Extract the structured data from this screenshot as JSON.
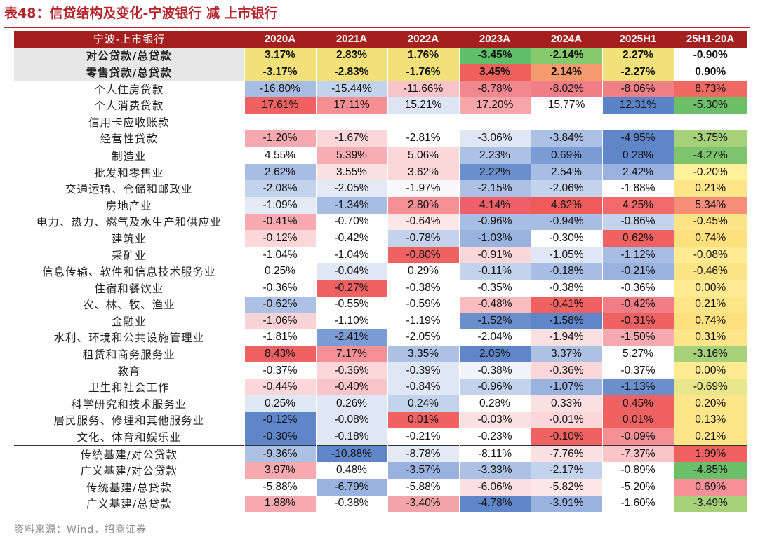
{
  "title": "表48：信贷结构及变化-宁波银行 减 上市银行",
  "header": {
    "corner": "宁波-上市银行",
    "columns": [
      "2020A",
      "2021A",
      "2022A",
      "2023A",
      "2024A",
      "2025H1",
      "25H1-20A"
    ]
  },
  "rows": [
    {
      "label": "对公贷款/总贷款",
      "bold": true,
      "values": [
        "3.17%",
        "2.83%",
        "1.76%",
        "-3.45%",
        "-2.14%",
        "2.27%",
        "-0.90%"
      ],
      "colors": [
        "#f2e07a",
        "#f2e07a",
        "#f2e07a",
        "#5fbf6a",
        "#87c96d",
        "#f2e07a",
        "#ffffff"
      ]
    },
    {
      "label": "零售贷款/总贷款",
      "bold": true,
      "values": [
        "-3.17%",
        "-2.83%",
        "-1.76%",
        "3.45%",
        "2.14%",
        "-2.27%",
        "0.90%"
      ],
      "colors": [
        "#f2e07a",
        "#f2e07a",
        "#f2e07a",
        "#f0605a",
        "#f49a6e",
        "#f2e07a",
        "#ffffff"
      ]
    },
    {
      "label": "个人住房贷款",
      "values": [
        "-16.80%",
        "-15.44%",
        "-11.66%",
        "-8.78%",
        "-8.02%",
        "-8.06%",
        "8.73%"
      ],
      "colors": [
        "#a7bde3",
        "#c4d3ec",
        "#f7c5c9",
        "#f2888f",
        "#ef7e86",
        "#f07f86",
        "#f06963"
      ]
    },
    {
      "label": "个人消费贷款",
      "values": [
        "17.61%",
        "17.11%",
        "15.21%",
        "17.20%",
        "15.77%",
        "12.31%",
        "-5.30%"
      ],
      "colors": [
        "#f06262",
        "#f58f93",
        "#dde5f4",
        "#f6a5a9",
        "#ffffff",
        "#5b84c8",
        "#6cbf69"
      ]
    },
    {
      "label": "信用卡应收账款",
      "values": [
        "",
        "",
        "",
        "",
        "",
        "",
        ""
      ],
      "colors": [
        "#ffffff",
        "#ffffff",
        "#ffffff",
        "#ffffff",
        "#ffffff",
        "#ffffff",
        "#ffffff"
      ]
    },
    {
      "label": "经营性贷款",
      "values": [
        "-1.20%",
        "-1.67%",
        "-2.81%",
        "-3.06%",
        "-3.84%",
        "-4.95%",
        "-3.75%"
      ],
      "colors": [
        "#f6aab0",
        "#fbd7da",
        "#ffffff",
        "#dfe6f4",
        "#adc1e4",
        "#5f86c9",
        "#a6d17a"
      ]
    },
    {
      "label": "制造业",
      "sep": true,
      "values": [
        "4.55%",
        "5.39%",
        "5.06%",
        "2.23%",
        "0.69%",
        "0.28%",
        "-4.27%"
      ],
      "colors": [
        "#ffffff",
        "#f6aeb3",
        "#fbd7da",
        "#adc1e4",
        "#7c9cd5",
        "#5f86c9",
        "#7ec46c"
      ]
    },
    {
      "label": "批发和零售业",
      "values": [
        "2.62%",
        "3.55%",
        "3.62%",
        "2.22%",
        "2.54%",
        "2.42%",
        "-0.20%"
      ],
      "colors": [
        "#a7bde3",
        "#fbe0e2",
        "#fbd7da",
        "#6b8fcc",
        "#a7bde3",
        "#99b2df",
        "#fff09a"
      ]
    },
    {
      "label": "交通运输、仓储和邮政业",
      "values": [
        "-2.08%",
        "-2.05%",
        "-1.97%",
        "-2.15%",
        "-2.06%",
        "-1.88%",
        "0.21%"
      ],
      "colors": [
        "#c4d3ec",
        "#e3e9f5",
        "#f9f9fb",
        "#adc1e4",
        "#c4d3ec",
        "#ffffff",
        "#ffe58a"
      ]
    },
    {
      "label": "房地产业",
      "values": [
        "-1.09%",
        "-1.34%",
        "2.80%",
        "4.14%",
        "4.62%",
        "4.25%",
        "5.34%"
      ],
      "colors": [
        "#e3e9f5",
        "#a7bde3",
        "#f49096",
        "#f0606a",
        "#ef5a5a",
        "#f26a6c",
        "#f58d78"
      ]
    },
    {
      "label": "电力、热力、燃气及水生产和供应业",
      "values": [
        "-0.41%",
        "-0.70%",
        "-0.64%",
        "-0.96%",
        "-0.94%",
        "-0.86%",
        "-0.45%"
      ],
      "colors": [
        "#f6aab0",
        "#ffffff",
        "#fde6e8",
        "#a7bde3",
        "#a7bde3",
        "#c4d3ec",
        "#fbe486"
      ]
    },
    {
      "label": "建筑业",
      "values": [
        "-0.12%",
        "-0.42%",
        "-0.78%",
        "-1.03%",
        "-0.30%",
        "0.62%",
        "0.74%"
      ],
      "colors": [
        "#fbd7da",
        "#ffffff",
        "#c4d3ec",
        "#99b2df",
        "#ffffff",
        "#f06262",
        "#ffe07e"
      ]
    },
    {
      "label": "采矿业",
      "values": [
        "-1.04%",
        "-1.04%",
        "-0.80%",
        "-0.91%",
        "-1.05%",
        "-1.12%",
        "-0.08%"
      ],
      "colors": [
        "#ffffff",
        "#ffffff",
        "#f06262",
        "#fbd7da",
        "#dfe6f4",
        "#a7bde3",
        "#ffeb92"
      ]
    },
    {
      "label": "信息传输、软件和信息技术服务业",
      "values": [
        "0.25%",
        "-0.04%",
        "0.29%",
        "-0.11%",
        "-0.18%",
        "-0.21%",
        "-0.46%"
      ],
      "colors": [
        "#ffffff",
        "#dfe6f4",
        "#ffffff",
        "#c4d3ec",
        "#a7bde3",
        "#99b2df",
        "#fbe486"
      ]
    },
    {
      "label": "住宿和餐饮业",
      "values": [
        "-0.36%",
        "-0.27%",
        "-0.38%",
        "-0.35%",
        "-0.38%",
        "-0.36%",
        "0.00%"
      ],
      "colors": [
        "#ffffff",
        "#f06262",
        "#ffffff",
        "#ffffff",
        "#ffffff",
        "#ffffff",
        "#ffeb92"
      ]
    },
    {
      "label": "农、林、牧、渔业",
      "values": [
        "-0.62%",
        "-0.55%",
        "-0.59%",
        "-0.48%",
        "-0.41%",
        "-0.42%",
        "0.21%"
      ],
      "colors": [
        "#adc1e4",
        "#ffffff",
        "#ffffff",
        "#f9bcc1",
        "#f06262",
        "#f27d84",
        "#ffe58a"
      ]
    },
    {
      "label": "金融业",
      "values": [
        "-1.06%",
        "-1.10%",
        "-1.19%",
        "-1.52%",
        "-1.58%",
        "-0.31%",
        "0.74%"
      ],
      "colors": [
        "#f9d3d6",
        "#ffffff",
        "#ffffff",
        "#6b8fcc",
        "#5f86c9",
        "#f06262",
        "#ffe07e"
      ]
    },
    {
      "label": "水利、环境和公共设施管理业",
      "values": [
        "-1.81%",
        "-2.41%",
        "-2.05%",
        "-2.04%",
        "-1.94%",
        "-1.50%",
        "0.31%"
      ],
      "colors": [
        "#ffffff",
        "#7c9cd5",
        "#ffffff",
        "#ffffff",
        "#fbe0e2",
        "#f6aab0",
        "#ffe58a"
      ]
    },
    {
      "label": "租赁和商务服务业",
      "values": [
        "8.43%",
        "7.17%",
        "3.35%",
        "2.05%",
        "3.37%",
        "5.27%",
        "-3.16%"
      ],
      "colors": [
        "#f06262",
        "#f49096",
        "#adc1e4",
        "#5f86c9",
        "#adc1e4",
        "#ffffff",
        "#a6d17a"
      ]
    },
    {
      "label": "教育",
      "values": [
        "-0.37%",
        "-0.36%",
        "-0.39%",
        "-0.38%",
        "-0.36%",
        "-0.37%",
        "0.00%"
      ],
      "colors": [
        "#ffffff",
        "#fbd7da",
        "#dfe6f4",
        "#f1f4fa",
        "#fbd7da",
        "#ffffff",
        "#ffeb92"
      ]
    },
    {
      "label": "卫生和社会工作",
      "values": [
        "-0.44%",
        "-0.40%",
        "-0.84%",
        "-0.96%",
        "-1.07%",
        "-1.13%",
        "-0.69%"
      ],
      "colors": [
        "#fbd7da",
        "#f9c5c9",
        "#dfe6f4",
        "#c4d3ec",
        "#99b2df",
        "#6b8fcc",
        "#e8e68a"
      ]
    },
    {
      "label": "科学研究和技术服务业",
      "values": [
        "0.25%",
        "0.26%",
        "0.24%",
        "0.28%",
        "0.33%",
        "0.45%",
        "0.20%"
      ],
      "colors": [
        "#dfe6f4",
        "#dfe6f4",
        "#c4d3ec",
        "#ffffff",
        "#fbe0e2",
        "#f06262",
        "#ffe58a"
      ]
    },
    {
      "label": "居民服务、修理和其他服务业",
      "values": [
        "-0.12%",
        "-0.08%",
        "0.01%",
        "-0.03%",
        "-0.01%",
        "0.01%",
        "0.13%"
      ],
      "colors": [
        "#5f86c9",
        "#dfe6f4",
        "#f06262",
        "#fbe0e2",
        "#fbd7da",
        "#f06262",
        "#ffe58a"
      ]
    },
    {
      "label": "文化、体育和娱乐业",
      "values": [
        "-0.30%",
        "-0.18%",
        "-0.21%",
        "-0.23%",
        "-0.10%",
        "-0.09%",
        "0.21%"
      ],
      "colors": [
        "#5f86c9",
        "#dfe6f4",
        "#ffffff",
        "#ffffff",
        "#f06262",
        "#f49096",
        "#ffe58a"
      ]
    },
    {
      "label": "传统基建/对公贷款",
      "sep": true,
      "values": [
        "-9.36%",
        "-10.88%",
        "-8.78%",
        "-8.11%",
        "-7.76%",
        "-7.37%",
        "1.99%"
      ],
      "colors": [
        "#adc1e4",
        "#5f86c9",
        "#e3e9f5",
        "#ffffff",
        "#fbe0e2",
        "#f9c5c9",
        "#f06262"
      ]
    },
    {
      "label": "广义基建/对公贷款",
      "values": [
        "3.97%",
        "0.48%",
        "-3.57%",
        "-3.33%",
        "-2.17%",
        "-0.89%",
        "-4.85%"
      ],
      "colors": [
        "#f6aab0",
        "#ffffff",
        "#99b2df",
        "#adc1e4",
        "#c4d3ec",
        "#ffffff",
        "#6cbf69"
      ]
    },
    {
      "label": "传统基建/总贷款",
      "values": [
        "-5.88%",
        "-6.79%",
        "-5.88%",
        "-6.06%",
        "-5.82%",
        "-5.20%",
        "0.69%"
      ],
      "colors": [
        "#ffffff",
        "#99b2df",
        "#ffffff",
        "#fbe0e2",
        "#fde6e8",
        "#ffffff",
        "#f49096"
      ]
    },
    {
      "label": "广义基建/总贷款",
      "last": true,
      "values": [
        "1.88%",
        "-0.38%",
        "-3.40%",
        "-4.78%",
        "-3.91%",
        "-1.60%",
        "-3.49%"
      ],
      "colors": [
        "#f6aab0",
        "#ffffff",
        "#f3a4a8",
        "#5f86c9",
        "#99b2df",
        "#ffffff",
        "#a6d17a"
      ]
    }
  ],
  "source": "资料来源：Wind，招商证券"
}
